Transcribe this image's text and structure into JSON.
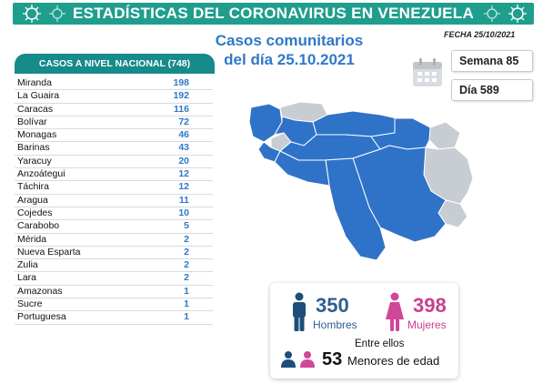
{
  "header": {
    "title": "ESTADÍSTICAS DEL CORONAVIRUS EN VENEZUELA",
    "date": "FECHA 25/10/2021"
  },
  "subtitle": {
    "line1": "Casos comunitarios",
    "line2": "del día 25.10.2021"
  },
  "table": {
    "header": "CASOS A NIVEL NACIONAL  (748)",
    "rows": [
      {
        "state": "Miranda",
        "cases": "198"
      },
      {
        "state": "La Guaira",
        "cases": "192"
      },
      {
        "state": "Caracas",
        "cases": "116"
      },
      {
        "state": "Bolívar",
        "cases": "72"
      },
      {
        "state": "Monagas",
        "cases": "46"
      },
      {
        "state": "Barinas",
        "cases": "43"
      },
      {
        "state": "Yaracuy",
        "cases": "20"
      },
      {
        "state": "Anzoátegui",
        "cases": "12"
      },
      {
        "state": "Táchira",
        "cases": "12"
      },
      {
        "state": "Aragua",
        "cases": "11"
      },
      {
        "state": "Cojedes",
        "cases": "10"
      },
      {
        "state": "Carabobo",
        "cases": "5"
      },
      {
        "state": "Mérida",
        "cases": "2"
      },
      {
        "state": "Nueva Esparta",
        "cases": "2"
      },
      {
        "state": "Zulia",
        "cases": "2"
      },
      {
        "state": "Lara",
        "cases": "2"
      },
      {
        "state": "Amazonas",
        "cases": "1"
      },
      {
        "state": "Sucre",
        "cases": "1"
      },
      {
        "state": "Portuguesa",
        "cases": "1"
      }
    ]
  },
  "badges": {
    "week": "Semana 85",
    "day": "Día 589"
  },
  "stats": {
    "men_count": "350",
    "men_label": "Hombres",
    "women_count": "398",
    "women_label": "Mujeres",
    "minors_intro": "Entre ellos",
    "minors_count": "53",
    "minors_label": "Menores de edad"
  },
  "icons": {
    "virus": "virus-icon",
    "calendar": "calendar-icon",
    "man": "man-icon",
    "woman": "woman-icon",
    "children": "children-icon",
    "map": "venezuela-map"
  },
  "colors": {
    "banner": "#1f9e8e",
    "table_header": "#178a8a",
    "blue_text": "#2f78c7",
    "map_affected": "#2f73c9",
    "map_unaffected": "#c7cdd3",
    "men": "#1e4d7a",
    "women": "#d0479a"
  }
}
